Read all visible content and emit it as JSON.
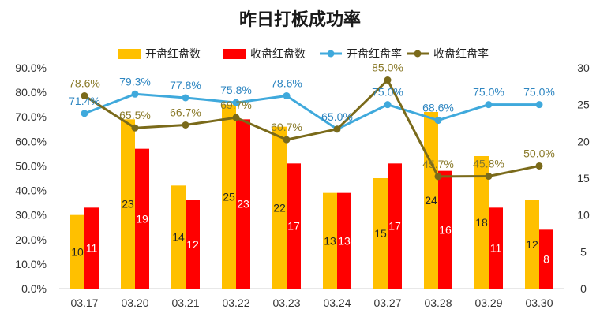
{
  "chart_data": {
    "type": "bar",
    "title": "昨日打板成功率",
    "categories": [
      "03.17",
      "03.20",
      "03.21",
      "03.22",
      "03.23",
      "03.24",
      "03.27",
      "03.28",
      "03.29",
      "03.30"
    ],
    "series": [
      {
        "name": "开盘红盘数",
        "kind": "bar",
        "axis": "right",
        "color": "#FFC000",
        "values": [
          10,
          23,
          14,
          25,
          22,
          13,
          15,
          24,
          18,
          12
        ]
      },
      {
        "name": "收盘红盘数",
        "kind": "bar",
        "axis": "right",
        "color": "#FF0000",
        "values": [
          11,
          19,
          12,
          23,
          17,
          13,
          17,
          16,
          11,
          8
        ]
      },
      {
        "name": "开盘红盘率",
        "kind": "line",
        "axis": "left",
        "color": "#3FA9DC",
        "label_color": "#2E86C1",
        "values": [
          71.4,
          79.3,
          77.8,
          75.8,
          78.6,
          65.0,
          75.0,
          68.6,
          75.0,
          75.0
        ],
        "labels": [
          "71.4%",
          "79.3%",
          "77.8%",
          "75.8%",
          "78.6%",
          "65.0%",
          "75.0%",
          "68.6%",
          "75.0%",
          "75.0%"
        ]
      },
      {
        "name": "收盘红盘率",
        "kind": "line",
        "axis": "left",
        "color": "#7A6A1A",
        "label_color": "#8A7A2A",
        "values": [
          78.6,
          65.5,
          66.7,
          69.7,
          60.7,
          65.0,
          85.0,
          45.7,
          45.8,
          50.0
        ],
        "labels": [
          "78.6%",
          "65.5%",
          "66.7%",
          "69.7%",
          "60.7%",
          "",
          "85.0%",
          "45.7%",
          "45.8%",
          "50.0%"
        ]
      }
    ],
    "y_left": {
      "min": 0,
      "max": 90,
      "step": 10,
      "ticks": [
        "0.0%",
        "10.0%",
        "20.0%",
        "30.0%",
        "40.0%",
        "50.0%",
        "60.0%",
        "70.0%",
        "80.0%",
        "90.0%"
      ]
    },
    "y_right": {
      "min": 0,
      "max": 30,
      "step": 5,
      "ticks": [
        "0",
        "5",
        "10",
        "15",
        "20",
        "25",
        "30"
      ]
    },
    "grid": false,
    "legend_position": "top"
  }
}
